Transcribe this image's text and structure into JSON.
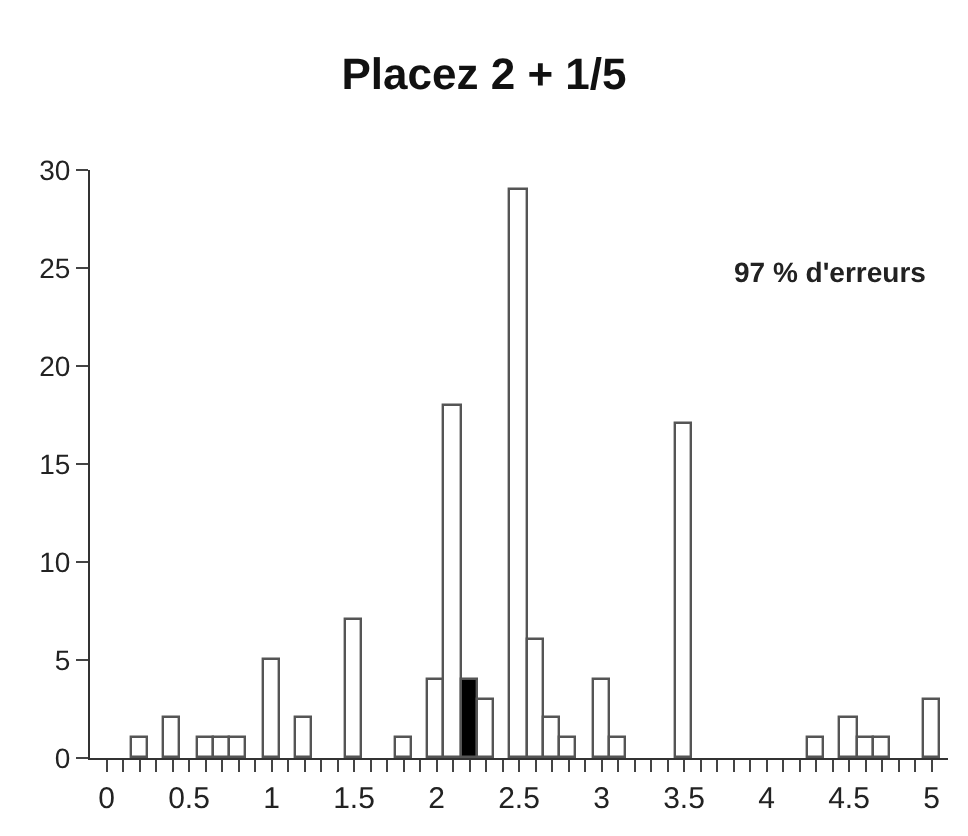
{
  "chart_data": {
    "type": "histogram",
    "title": "Placez 2 + 1/5",
    "bins": [
      -0.05,
      0.05,
      0.15,
      0.25,
      0.35,
      0.45,
      0.55,
      0.65,
      0.75,
      0.85,
      0.95,
      1.05,
      1.15,
      1.25,
      1.35,
      1.45,
      1.55,
      1.65,
      1.75,
      1.85,
      1.95,
      2.05,
      2.15,
      2.25,
      2.35,
      2.45,
      2.55,
      2.65,
      2.75,
      2.85,
      2.95,
      3.05,
      3.15,
      3.25,
      3.35,
      3.45,
      3.55,
      3.65,
      3.75,
      3.85,
      3.95,
      4.05,
      4.15,
      4.25,
      4.35,
      4.45,
      4.55,
      4.65,
      4.75,
      4.85,
      4.95,
      5.05
    ],
    "values": [
      0,
      0,
      1,
      0,
      2,
      0,
      1,
      1,
      1,
      0,
      5,
      0,
      2,
      0,
      0,
      7,
      0,
      0,
      1,
      0,
      4,
      18,
      4,
      3,
      0,
      29,
      6,
      2,
      1,
      0,
      4,
      1,
      0,
      0,
      0,
      17,
      0,
      0,
      0,
      0,
      0,
      0,
      0,
      1,
      0,
      2,
      1,
      1,
      0,
      0,
      3
    ],
    "colors": [
      "#ffffff",
      "#ffffff",
      "#ffffff",
      "#ffffff",
      "#ffffff",
      "#ffffff",
      "#ffffff",
      "#ffffff",
      "#ffffff",
      "#ffffff",
      "#ffffff",
      "#ffffff",
      "#ffffff",
      "#ffffff",
      "#ffffff",
      "#ffffff",
      "#ffffff",
      "#ffffff",
      "#ffffff",
      "#ffffff",
      "#ffffff",
      "#ffffff",
      "#000000",
      "#ffffff",
      "#ffffff",
      "#ffffff",
      "#ffffff",
      "#ffffff",
      "#ffffff",
      "#ffffff",
      "#ffffff",
      "#ffffff",
      "#ffffff",
      "#ffffff",
      "#ffffff",
      "#ffffff",
      "#ffffff",
      "#ffffff",
      "#ffffff",
      "#ffffff",
      "#ffffff",
      "#ffffff",
      "#ffffff",
      "#ffffff",
      "#ffffff",
      "#ffffff",
      "#ffffff",
      "#ffffff",
      "#ffffff",
      "#ffffff",
      "#ffffff"
    ],
    "xlim": [
      -0.1,
      5.1
    ],
    "xticks": [
      0,
      {
        "value": 0.1,
        "label": null
      },
      {
        "value": 0.2,
        "label": null
      },
      {
        "value": 0.3,
        "label": null
      },
      {
        "value": 0.4,
        "label": null
      },
      0.5,
      {
        "value": 0.6,
        "label": null
      },
      {
        "value": 0.7,
        "label": null
      },
      {
        "value": 0.8,
        "label": null
      },
      {
        "value": 0.9,
        "label": null
      },
      1,
      {
        "value": 1.1,
        "label": null
      },
      {
        "value": 1.2,
        "label": null
      },
      {
        "value": 1.3,
        "label": null
      },
      {
        "value": 1.4,
        "label": null
      },
      1.5,
      {
        "value": 1.6,
        "label": null
      },
      {
        "value": 1.7,
        "label": null
      },
      {
        "value": 1.8,
        "label": null
      },
      {
        "value": 1.9,
        "label": null
      },
      2,
      {
        "value": 2.1,
        "label": null
      },
      {
        "value": 2.2,
        "label": null
      },
      {
        "value": 2.3,
        "label": null
      },
      {
        "value": 2.4,
        "label": null
      },
      2.5,
      {
        "value": 2.6,
        "label": null
      },
      {
        "value": 2.7,
        "label": null
      },
      {
        "value": 2.8,
        "label": null
      },
      {
        "value": 2.9,
        "label": null
      },
      3,
      {
        "value": 3.1,
        "label": null
      },
      {
        "value": 3.2,
        "label": null
      },
      {
        "value": 3.3,
        "label": null
      },
      {
        "value": 3.4,
        "label": null
      },
      3.5,
      {
        "value": 3.6,
        "label": null
      },
      {
        "value": 3.7,
        "label": null
      },
      {
        "value": 3.8,
        "label": null
      },
      {
        "value": 3.9,
        "label": null
      },
      4,
      {
        "value": 4.1,
        "label": null
      },
      {
        "value": 4.2,
        "label": null
      },
      {
        "value": 4.3,
        "label": null
      },
      {
        "value": 4.4,
        "label": null
      },
      4.5,
      {
        "value": 4.6,
        "label": null
      },
      {
        "value": 4.7,
        "label": null
      },
      {
        "value": 4.8,
        "label": null
      },
      {
        "value": 4.9,
        "label": null
      },
      5
    ],
    "ylim": [
      0,
      30
    ],
    "yticks": [
      0,
      5,
      10,
      15,
      20,
      25,
      30
    ],
    "annotations": [
      "97 % d'erreurs"
    ]
  }
}
